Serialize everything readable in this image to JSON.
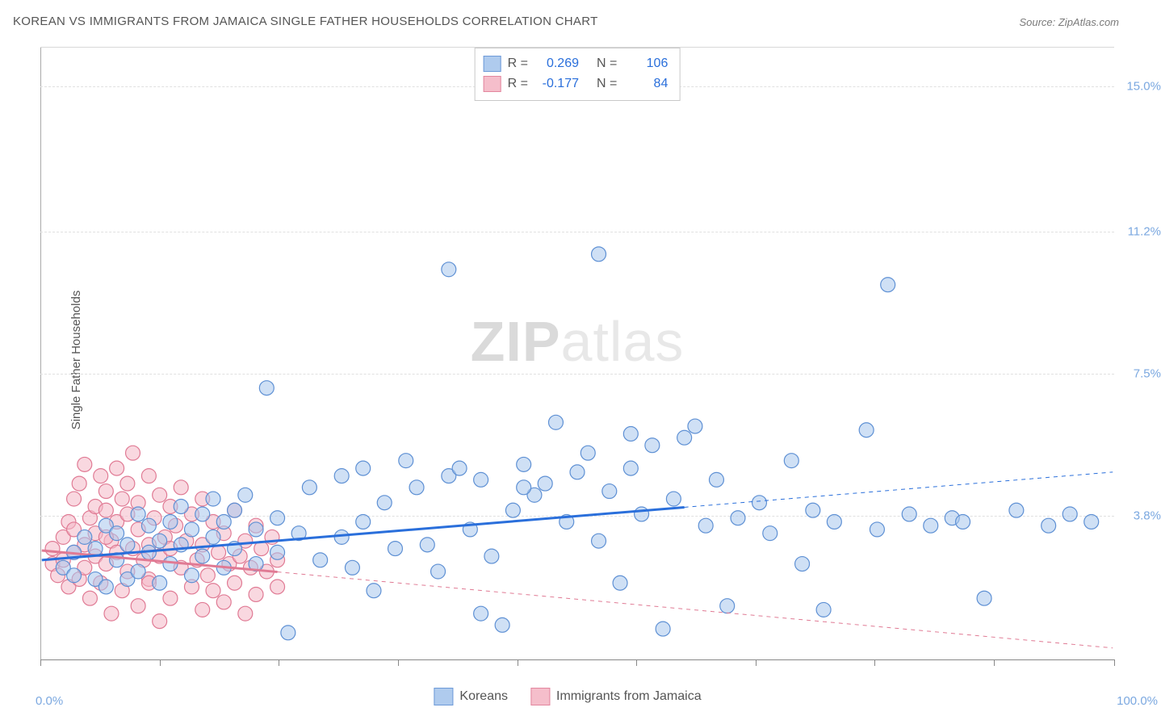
{
  "title": "KOREAN VS IMMIGRANTS FROM JAMAICA SINGLE FATHER HOUSEHOLDS CORRELATION CHART",
  "source": "Source: ZipAtlas.com",
  "watermark_bold": "ZIP",
  "watermark_light": "atlas",
  "y_axis_title": "Single Father Households",
  "chart": {
    "type": "scatter",
    "background_color": "#ffffff",
    "grid_color": "#e0e0e0",
    "axis_color": "#888888",
    "xlim": [
      0,
      100
    ],
    "ylim": [
      0,
      16
    ],
    "x_ticks_pct": [
      0,
      11.1,
      22.2,
      33.3,
      44.4,
      55.5,
      66.6,
      77.7,
      88.8,
      100
    ],
    "x_min_label": "0.0%",
    "x_max_label": "100.0%",
    "y_grid": [
      {
        "value": 3.8,
        "label": "3.8%"
      },
      {
        "value": 7.5,
        "label": "7.5%"
      },
      {
        "value": 11.2,
        "label": "11.2%"
      },
      {
        "value": 15.0,
        "label": "15.0%"
      }
    ],
    "label_color": "#7ba8e0",
    "label_fontsize": 15,
    "title_fontsize": 15,
    "title_color": "#555555",
    "marker_radius": 9,
    "marker_stroke_width": 1.2,
    "trend_line_width_solid": 3,
    "trend_line_width_dash": 1
  },
  "series": {
    "koreans": {
      "label": "Koreans",
      "fill": "#a7c6ed",
      "stroke": "#5e90d4",
      "fill_opacity": 0.55,
      "r_label": "R =",
      "r_value": "0.269",
      "n_label": "N =",
      "n_value": "106",
      "trend": {
        "x1": 0,
        "y1": 2.6,
        "x2": 100,
        "y2": 4.9,
        "solid_until_x": 60,
        "color": "#2a6fdb"
      },
      "points": [
        [
          2,
          2.4
        ],
        [
          3,
          2.8
        ],
        [
          3,
          2.2
        ],
        [
          4,
          3.2
        ],
        [
          5,
          2.1
        ],
        [
          5,
          2.9
        ],
        [
          6,
          3.5
        ],
        [
          6,
          1.9
        ],
        [
          7,
          2.6
        ],
        [
          7,
          3.3
        ],
        [
          8,
          2.1
        ],
        [
          8,
          3.0
        ],
        [
          9,
          3.8
        ],
        [
          9,
          2.3
        ],
        [
          10,
          2.8
        ],
        [
          10,
          3.5
        ],
        [
          11,
          2.0
        ],
        [
          11,
          3.1
        ],
        [
          12,
          3.6
        ],
        [
          12,
          2.5
        ],
        [
          13,
          3.0
        ],
        [
          13,
          4.0
        ],
        [
          14,
          2.2
        ],
        [
          14,
          3.4
        ],
        [
          15,
          3.8
        ],
        [
          15,
          2.7
        ],
        [
          16,
          3.2
        ],
        [
          16,
          4.2
        ],
        [
          17,
          2.4
        ],
        [
          17,
          3.6
        ],
        [
          18,
          2.9
        ],
        [
          18,
          3.9
        ],
        [
          19,
          4.3
        ],
        [
          20,
          2.5
        ],
        [
          20,
          3.4
        ],
        [
          21,
          7.1
        ],
        [
          22,
          2.8
        ],
        [
          22,
          3.7
        ],
        [
          23,
          0.7
        ],
        [
          24,
          3.3
        ],
        [
          25,
          4.5
        ],
        [
          26,
          2.6
        ],
        [
          28,
          4.8
        ],
        [
          28,
          3.2
        ],
        [
          29,
          2.4
        ],
        [
          30,
          5.0
        ],
        [
          30,
          3.6
        ],
        [
          31,
          1.8
        ],
        [
          32,
          4.1
        ],
        [
          33,
          2.9
        ],
        [
          34,
          5.2
        ],
        [
          35,
          4.5
        ],
        [
          36,
          3.0
        ],
        [
          37,
          2.3
        ],
        [
          38,
          10.2
        ],
        [
          38,
          4.8
        ],
        [
          39,
          5.0
        ],
        [
          40,
          3.4
        ],
        [
          41,
          1.2
        ],
        [
          41,
          4.7
        ],
        [
          42,
          2.7
        ],
        [
          43,
          0.9
        ],
        [
          44,
          3.9
        ],
        [
          45,
          5.1
        ],
        [
          46,
          4.3
        ],
        [
          47,
          4.6
        ],
        [
          48,
          6.2
        ],
        [
          49,
          3.6
        ],
        [
          50,
          4.9
        ],
        [
          51,
          5.4
        ],
        [
          52,
          3.1
        ],
        [
          52,
          10.6
        ],
        [
          53,
          4.4
        ],
        [
          54,
          2.0
        ],
        [
          55,
          5.0
        ],
        [
          56,
          3.8
        ],
        [
          57,
          5.6
        ],
        [
          58,
          0.8
        ],
        [
          59,
          4.2
        ],
        [
          60,
          5.8
        ],
        [
          61,
          6.1
        ],
        [
          62,
          3.5
        ],
        [
          63,
          4.7
        ],
        [
          64,
          1.4
        ],
        [
          65,
          3.7
        ],
        [
          67,
          4.1
        ],
        [
          68,
          3.3
        ],
        [
          70,
          5.2
        ],
        [
          71,
          2.5
        ],
        [
          72,
          3.9
        ],
        [
          73,
          1.3
        ],
        [
          74,
          3.6
        ],
        [
          77,
          6.0
        ],
        [
          78,
          3.4
        ],
        [
          79,
          9.8
        ],
        [
          81,
          3.8
        ],
        [
          83,
          3.5
        ],
        [
          85,
          3.7
        ],
        [
          86,
          3.6
        ],
        [
          88,
          1.6
        ],
        [
          91,
          3.9
        ],
        [
          94,
          3.5
        ],
        [
          96,
          3.8
        ],
        [
          98,
          3.6
        ],
        [
          55,
          5.9
        ],
        [
          45,
          4.5
        ]
      ]
    },
    "jamaica": {
      "label": "Immigrants from Jamaica",
      "fill": "#f4b8c6",
      "stroke": "#e07a94",
      "fill_opacity": 0.55,
      "r_label": "R =",
      "r_value": "-0.177",
      "n_label": "N =",
      "n_value": "84",
      "trend": {
        "x1": 0,
        "y1": 2.85,
        "x2": 100,
        "y2": 0.3,
        "solid_until_x": 22,
        "color": "#e07a94"
      },
      "points": [
        [
          1,
          2.5
        ],
        [
          1,
          2.9
        ],
        [
          1.5,
          2.2
        ],
        [
          2,
          3.2
        ],
        [
          2,
          2.6
        ],
        [
          2.5,
          3.6
        ],
        [
          2.5,
          1.9
        ],
        [
          3,
          4.2
        ],
        [
          3,
          2.8
        ],
        [
          3,
          3.4
        ],
        [
          3.5,
          2.1
        ],
        [
          3.5,
          4.6
        ],
        [
          4,
          3.0
        ],
        [
          4,
          2.4
        ],
        [
          4,
          5.1
        ],
        [
          4.5,
          3.7
        ],
        [
          4.5,
          1.6
        ],
        [
          5,
          4.0
        ],
        [
          5,
          2.7
        ],
        [
          5,
          3.3
        ],
        [
          5.5,
          4.8
        ],
        [
          5.5,
          2.0
        ],
        [
          6,
          3.9
        ],
        [
          6,
          2.5
        ],
        [
          6,
          4.4
        ],
        [
          6.5,
          1.2
        ],
        [
          6.5,
          3.1
        ],
        [
          7,
          5.0
        ],
        [
          7,
          2.8
        ],
        [
          7,
          3.6
        ],
        [
          7.5,
          4.2
        ],
        [
          7.5,
          1.8
        ],
        [
          8,
          2.3
        ],
        [
          8,
          3.8
        ],
        [
          8,
          4.6
        ],
        [
          8.5,
          2.9
        ],
        [
          8.5,
          5.4
        ],
        [
          9,
          3.4
        ],
        [
          9,
          1.4
        ],
        [
          9,
          4.1
        ],
        [
          9.5,
          2.6
        ],
        [
          10,
          3.0
        ],
        [
          10,
          4.8
        ],
        [
          10,
          2.1
        ],
        [
          10.5,
          3.7
        ],
        [
          11,
          1.0
        ],
        [
          11,
          4.3
        ],
        [
          11,
          2.7
        ],
        [
          11.5,
          3.2
        ],
        [
          12,
          4.0
        ],
        [
          12,
          1.6
        ],
        [
          12,
          2.9
        ],
        [
          12.5,
          3.5
        ],
        [
          13,
          4.5
        ],
        [
          13,
          2.4
        ],
        [
          13.5,
          3.1
        ],
        [
          14,
          1.9
        ],
        [
          14,
          3.8
        ],
        [
          14.5,
          2.6
        ],
        [
          15,
          4.2
        ],
        [
          15,
          1.3
        ],
        [
          15,
          3.0
        ],
        [
          15.5,
          2.2
        ],
        [
          16,
          3.6
        ],
        [
          16,
          1.8
        ],
        [
          16.5,
          2.8
        ],
        [
          17,
          3.3
        ],
        [
          17,
          1.5
        ],
        [
          17.5,
          2.5
        ],
        [
          18,
          3.9
        ],
        [
          18,
          2.0
        ],
        [
          18.5,
          2.7
        ],
        [
          19,
          1.2
        ],
        [
          19,
          3.1
        ],
        [
          19.5,
          2.4
        ],
        [
          20,
          3.5
        ],
        [
          20,
          1.7
        ],
        [
          20.5,
          2.9
        ],
        [
          21,
          2.3
        ],
        [
          21.5,
          3.2
        ],
        [
          22,
          1.9
        ],
        [
          22,
          2.6
        ],
        [
          10,
          2.0
        ],
        [
          6,
          3.2
        ]
      ]
    }
  }
}
